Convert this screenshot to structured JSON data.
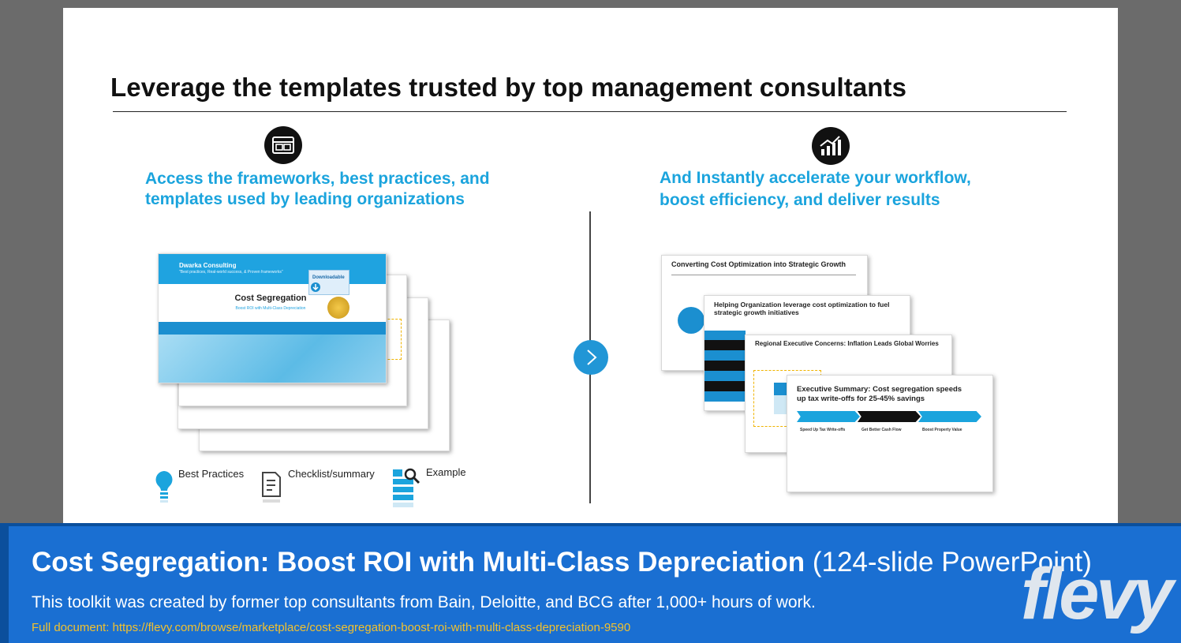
{
  "slide": {
    "title": "Leverage the templates trusted by top management consultants",
    "left_column": {
      "icon": "browser-window-icon",
      "heading_line1": "Access the frameworks, best practices, and",
      "heading_line2": "templates used by leading organizations",
      "cover": {
        "brand": "Dwarka Consulting",
        "tagline": "\"Best practices, Real-world success, & Proven frameworks\"",
        "badge": "Downloadable",
        "title": "Cost Segregation",
        "subtitle": "Boost ROI with Multi-Class Depreciation"
      },
      "legend": [
        {
          "icon": "lightbulb-icon",
          "label": "Best Practices"
        },
        {
          "icon": "checklist-icon",
          "label": "Checklist/summary"
        },
        {
          "icon": "example-search-icon",
          "label": "Example"
        }
      ]
    },
    "right_column": {
      "icon": "growth-chart-icon",
      "heading_line1": "And Instantly accelerate your workflow,",
      "heading_line2": "boost efficiency, and deliver results",
      "previews": [
        {
          "title": "Converting Cost Optimization into Strategic Growth"
        },
        {
          "title_line1": "Helping Organization leverage cost optimization to fuel",
          "title_line2": "strategic growth initiatives"
        },
        {
          "title": "Regional Executive Concerns: Inflation Leads Global Worries"
        },
        {
          "title_line1": "Executive Summary: Cost segregation speeds",
          "title_line2": "up tax write-offs for 25-45% savings",
          "columns": [
            {
              "heading": "Speed Up Tax Write-offs"
            },
            {
              "heading": "Get Better Cash Flow"
            },
            {
              "heading": "Boost Property Value"
            }
          ]
        }
      ]
    },
    "next_icon": "chevron-right-icon"
  },
  "banner": {
    "title_main": "Cost Segregation: Boost ROI with Multi-Class Depreciation",
    "title_suffix": "(124-slide PowerPoint)",
    "description": "This toolkit was created by former top consultants from Bain, Deloitte, and BCG after 1,000+ hours of work.",
    "link": "Full document: https://flevy.com/browse/marketplace/cost-segregation-boost-roi-with-multi-class-depreciation-9590",
    "logo": "flevy"
  }
}
